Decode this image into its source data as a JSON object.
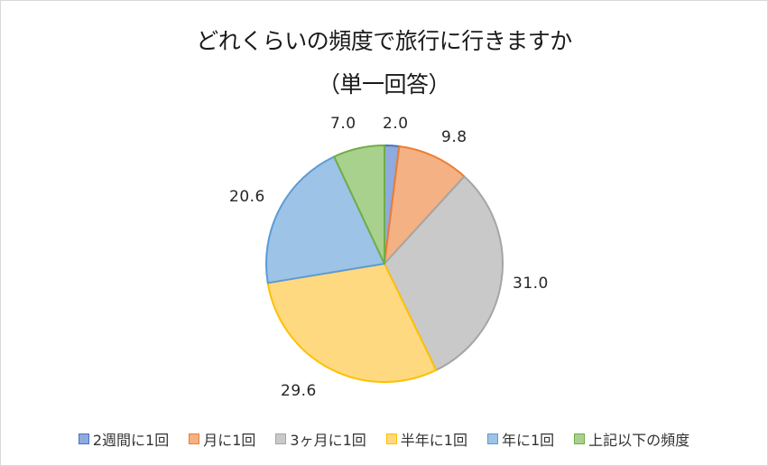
{
  "chart_data": {
    "type": "pie",
    "title": "どれくらいの頻度で旅行に行きますか",
    "subtitle": "（単一回答）",
    "categories": [
      "2週間に1回",
      "月に1回",
      "3ヶ月に1回",
      "半年に1回",
      "年に1回",
      "上記以下の頻度"
    ],
    "values": [
      2.0,
      9.8,
      31.0,
      29.6,
      20.6,
      7.0
    ],
    "value_labels": [
      "2.0",
      "9.8",
      "31.0",
      "29.6",
      "20.6",
      "7.0"
    ],
    "colors": [
      "#8faadc",
      "#f4b183",
      "#c9c9c9",
      "#ffd980",
      "#9dc3e6",
      "#a9d18e"
    ],
    "border_colors": [
      "#4472c4",
      "#ed7d31",
      "#a5a5a5",
      "#ffc000",
      "#5b9bd5",
      "#70ad47"
    ],
    "start_angle": "12 o'clock, clockwise",
    "legend_position": "bottom"
  },
  "title": {
    "line1": "どれくらいの頻度で旅行に行きますか",
    "line2": "（単一回答）"
  },
  "labels": [
    "2.0",
    "9.8",
    "31.0",
    "29.6",
    "20.6",
    "7.0"
  ],
  "legend": [
    {
      "label": "2週間に1回"
    },
    {
      "label": "月に1回"
    },
    {
      "label": "3ヶ月に1回"
    },
    {
      "label": "半年に1回"
    },
    {
      "label": "年に1回"
    },
    {
      "label": "上記以下の頻度"
    }
  ]
}
